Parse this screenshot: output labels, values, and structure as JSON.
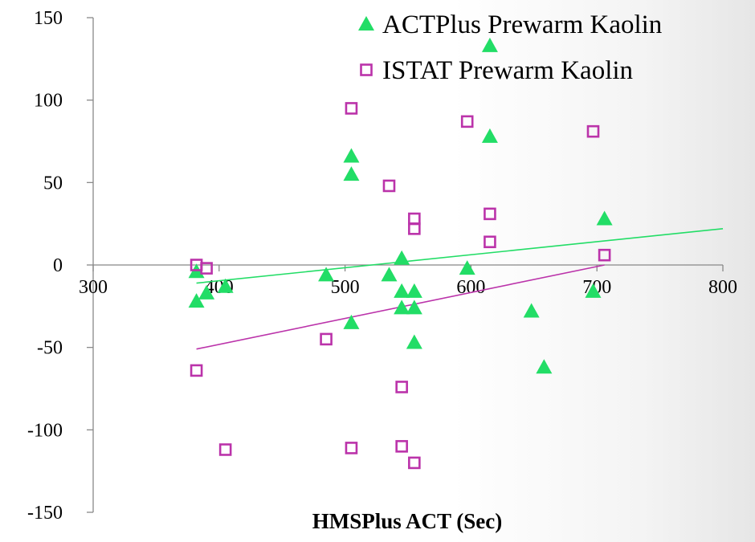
{
  "chart_data": {
    "type": "scatter",
    "xlabel": "HMSPlus ACT (Sec)",
    "ylabel": "",
    "xlim": [
      300,
      800
    ],
    "ylim": [
      -150,
      150
    ],
    "xticks": [
      300,
      400,
      500,
      600,
      700,
      800
    ],
    "yticks": [
      -150,
      -100,
      -50,
      0,
      50,
      100,
      150
    ],
    "grid": false,
    "legend_position": "top-right",
    "series": [
      {
        "name": "ACTPlus Prewarm Kaolin",
        "marker": "triangle",
        "color": "#22dd66",
        "points": [
          [
            382,
            -4
          ],
          [
            382,
            -22
          ],
          [
            390,
            -17
          ],
          [
            405,
            -13
          ],
          [
            485,
            -6
          ],
          [
            505,
            66
          ],
          [
            505,
            55
          ],
          [
            505,
            -35
          ],
          [
            535,
            -6
          ],
          [
            545,
            4
          ],
          [
            545,
            -16
          ],
          [
            545,
            -26
          ],
          [
            555,
            -16
          ],
          [
            555,
            -26
          ],
          [
            555,
            -47
          ],
          [
            597,
            -2
          ],
          [
            615,
            133
          ],
          [
            615,
            78
          ],
          [
            648,
            -28
          ],
          [
            658,
            -62
          ],
          [
            697,
            -16
          ],
          [
            706,
            28
          ]
        ],
        "trendline": [
          [
            382,
            -11
          ],
          [
            800,
            22
          ]
        ]
      },
      {
        "name": "ISTAT Prewarm Kaolin",
        "marker": "open-square",
        "color": "#bb33aa",
        "points": [
          [
            382,
            0
          ],
          [
            390,
            -2
          ],
          [
            382,
            -64
          ],
          [
            405,
            -112
          ],
          [
            485,
            -45
          ],
          [
            505,
            95
          ],
          [
            505,
            -111
          ],
          [
            535,
            48
          ],
          [
            545,
            -74
          ],
          [
            545,
            -110
          ],
          [
            555,
            28
          ],
          [
            555,
            22
          ],
          [
            555,
            -120
          ],
          [
            597,
            87
          ],
          [
            615,
            31
          ],
          [
            615,
            14
          ],
          [
            697,
            81
          ],
          [
            706,
            6
          ]
        ],
        "trendline": [
          [
            382,
            -51
          ],
          [
            706,
            0
          ]
        ]
      }
    ]
  }
}
